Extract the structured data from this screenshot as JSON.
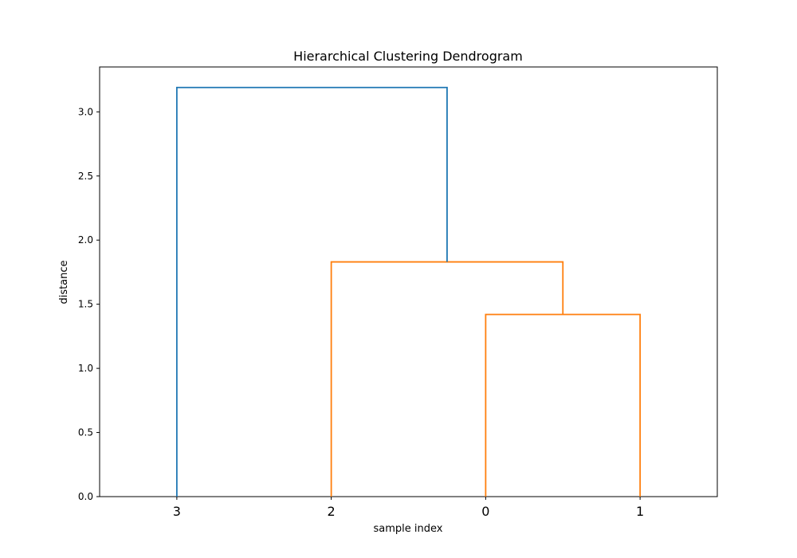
{
  "chart_data": {
    "type": "dendrogram",
    "title": "Hierarchical Clustering Dendrogram",
    "xlabel": "sample index",
    "ylabel": "distance",
    "ylim": [
      0,
      3.35
    ],
    "yticks": [
      0.0,
      0.5,
      1.0,
      1.5,
      2.0,
      2.5,
      3.0
    ],
    "ytick_labels": [
      "0.0",
      "0.5",
      "1.0",
      "1.5",
      "2.0",
      "2.5",
      "3.0"
    ],
    "leaf_order": [
      "3",
      "2",
      "0",
      "1"
    ],
    "grid": false,
    "links": [
      {
        "name": "merge-0-1",
        "left_x": 2,
        "right_x": 3,
        "left_height": 0.0,
        "right_height": 0.0,
        "height": 1.42,
        "color": "#ff7f0e"
      },
      {
        "name": "merge-2-01",
        "left_x": 1,
        "right_x": 2.5,
        "left_height": 0.0,
        "right_height": 1.42,
        "height": 1.83,
        "color": "#ff7f0e"
      },
      {
        "name": "merge-3-201",
        "left_x": 0,
        "right_x": 1.75,
        "left_height": 0.0,
        "right_height": 1.83,
        "height": 3.19,
        "color": "#1f77b4"
      }
    ]
  }
}
